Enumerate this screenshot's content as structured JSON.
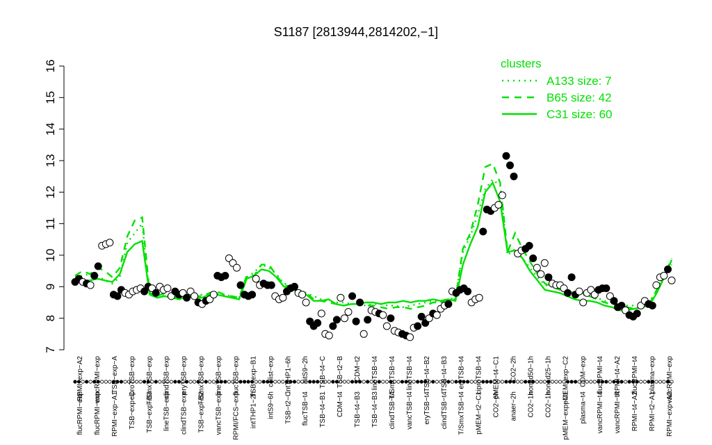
{
  "chart_data": {
    "type": "line",
    "title": "S1187 [2813944,2814202,−1]",
    "y_range": [
      7,
      16
    ],
    "y_ticks": [
      7,
      8,
      9,
      10,
      11,
      12,
      13,
      14,
      15,
      16
    ],
    "grid": false,
    "legend": {
      "title": "clusters",
      "placement": "top-right",
      "color": "#00e000",
      "items": [
        {
          "label": "A133 size: 7",
          "style": "dotted"
        },
        {
          "label": "B65 size: 42",
          "style": "dashed"
        },
        {
          "label": "C31 size: 60",
          "style": "solid"
        }
      ]
    },
    "x_labels_top": [
      "RPMI−exp−A2",
      "vancRPMI−exp",
      "TSB−exp−A",
      "ciproTSB−exp",
      "T/SmxTSB−exp",
      "clindTSB−exp",
      "eryTSB−exp",
      "T/SmxTSB−exp",
      "lineTSB−exp",
      "flucTSB−exp",
      "TSB−exp−B1",
      "colist−exp",
      "intTHP1−6h",
      "intS9−2h",
      "TSB−t4−C",
      "TSB−t2−B",
      "CDM−t2",
      "lineTSB−t4",
      "T/SmxTSB−t4",
      "lineTSB−t4",
      "TSB−t4−B2",
      "TSB−t4−B3",
      "eryTSB−t4",
      "ciproTSB−t4",
      "pMEM−t4−C1",
      "CO2−2h",
      "nonad50−1h",
      "nonad25−1h",
      "pMEM−exp−C2",
      "CDM−exp",
      "flucRPMI−t4",
      "RPMI−t4−A2",
      "flucRPMI−t4",
      "plasma−exp",
      "vancRPMI−exp"
    ],
    "x_labels_bottom": [
      "flucRPMI−exp",
      "flucRPMI−exp",
      "RPMI−exp−A1",
      "TSB−exp−C",
      "TSB−exp−B3",
      "lineTSB−exp",
      "clindTSB−exp",
      "TSB−exp−B2",
      "vancTSB−exp",
      "RPMI/FCS−exp",
      "intTHP1−2h",
      "intS9−6h",
      "TSB−t2−C",
      "flucTSB−t4",
      "TSB−t4−B1",
      "CDM−t4",
      "TSB−t4−B3",
      "TSB−t4−B3",
      "clindTSB−t4",
      "vancTSB−t4",
      "eryTSB−t4",
      "clindTSB−t4",
      "T/SmxTSB−t4",
      "pMEM−t2−C1",
      "CO2−6h",
      "anaer−2h",
      "CO2−1h",
      "CO2−1h",
      "pMEM−exp−C1",
      "plasma−t4",
      "vancRPMI−t4",
      "vancRPMI−t4",
      "RPMI−t4−A2",
      "RPMI−t2−A1",
      "RPMI−exp−A2"
    ],
    "points": [
      {
        "y": 9.15,
        "f": 1
      },
      {
        "y": 9.25,
        "f": 1
      },
      {
        "y": 9.15,
        "f": 0
      },
      {
        "y": 9.1,
        "f": 1
      },
      {
        "y": 9.05,
        "f": 0
      },
      {
        "y": 9.35,
        "f": 1
      },
      {
        "y": 9.65,
        "f": 1
      },
      {
        "y": 10.3,
        "f": 0
      },
      {
        "y": 10.35,
        "f": 0
      },
      {
        "y": 10.4,
        "f": 0
      },
      {
        "y": 8.75,
        "f": 1
      },
      {
        "y": 8.7,
        "f": 1
      },
      {
        "y": 8.9,
        "f": 1
      },
      {
        "y": 8.8,
        "f": 0
      },
      {
        "y": 8.75,
        "f": 0
      },
      {
        "y": 8.85,
        "f": 0
      },
      {
        "y": 8.9,
        "f": 0
      },
      {
        "y": 8.95,
        "f": 0
      },
      {
        "y": 8.85,
        "f": 1
      },
      {
        "y": 9.0,
        "f": 1
      },
      {
        "y": 8.95,
        "f": 0
      },
      {
        "y": 8.8,
        "f": 1
      },
      {
        "y": 9.0,
        "f": 0
      },
      {
        "y": 8.9,
        "f": 0
      },
      {
        "y": 8.95,
        "f": 0
      },
      {
        "y": 8.7,
        "f": 0
      },
      {
        "y": 8.85,
        "f": 1
      },
      {
        "y": 8.75,
        "f": 1
      },
      {
        "y": 8.8,
        "f": 0
      },
      {
        "y": 8.65,
        "f": 1
      },
      {
        "y": 8.85,
        "f": 0
      },
      {
        "y": 8.7,
        "f": 0
      },
      {
        "y": 8.5,
        "f": 1
      },
      {
        "y": 8.45,
        "f": 0
      },
      {
        "y": 8.55,
        "f": 1
      },
      {
        "y": 8.6,
        "f": 0
      },
      {
        "y": 8.75,
        "f": 0
      },
      {
        "y": 9.35,
        "f": 1
      },
      {
        "y": 9.3,
        "f": 1
      },
      {
        "y": 9.35,
        "f": 1
      },
      {
        "y": 9.9,
        "f": 0
      },
      {
        "y": 9.75,
        "f": 0
      },
      {
        "y": 9.6,
        "f": 0
      },
      {
        "y": 9.05,
        "f": 1
      },
      {
        "y": 8.75,
        "f": 1
      },
      {
        "y": 8.7,
        "f": 1
      },
      {
        "y": 8.75,
        "f": 1
      },
      {
        "y": 9.25,
        "f": 0
      },
      {
        "y": 9.05,
        "f": 0
      },
      {
        "y": 9.1,
        "f": 1
      },
      {
        "y": 9.05,
        "f": 1
      },
      {
        "y": 9.05,
        "f": 1
      },
      {
        "y": 8.7,
        "f": 0
      },
      {
        "y": 8.6,
        "f": 0
      },
      {
        "y": 8.65,
        "f": 0
      },
      {
        "y": 8.85,
        "f": 1
      },
      {
        "y": 8.95,
        "f": 1
      },
      {
        "y": 9.0,
        "f": 1
      },
      {
        "y": 8.8,
        "f": 0
      },
      {
        "y": 8.75,
        "f": 0
      },
      {
        "y": 8.5,
        "f": 0
      },
      {
        "y": 7.9,
        "f": 1
      },
      {
        "y": 7.75,
        "f": 1
      },
      {
        "y": 7.85,
        "f": 1
      },
      {
        "y": 8.15,
        "f": 0
      },
      {
        "y": 7.5,
        "f": 0
      },
      {
        "y": 7.45,
        "f": 0
      },
      {
        "y": 7.75,
        "f": 1
      },
      {
        "y": 7.95,
        "f": 1
      },
      {
        "y": 8.65,
        "f": 0
      },
      {
        "y": 8.0,
        "f": 0
      },
      {
        "y": 8.2,
        "f": 0
      },
      {
        "y": 8.7,
        "f": 1
      },
      {
        "y": 7.9,
        "f": 1
      },
      {
        "y": 8.5,
        "f": 1
      },
      {
        "y": 7.5,
        "f": 0
      },
      {
        "y": 7.95,
        "f": 1
      },
      {
        "y": 8.25,
        "f": 0
      },
      {
        "y": 8.2,
        "f": 0
      },
      {
        "y": 8.15,
        "f": 1
      },
      {
        "y": 8.1,
        "f": 0
      },
      {
        "y": 7.75,
        "f": 0
      },
      {
        "y": 8.0,
        "f": 1
      },
      {
        "y": 7.6,
        "f": 0
      },
      {
        "y": 7.55,
        "f": 0
      },
      {
        "y": 7.5,
        "f": 1
      },
      {
        "y": 7.45,
        "f": 1
      },
      {
        "y": 7.4,
        "f": 0
      },
      {
        "y": 7.7,
        "f": 0
      },
      {
        "y": 7.75,
        "f": 1
      },
      {
        "y": 8.05,
        "f": 1
      },
      {
        "y": 7.85,
        "f": 1
      },
      {
        "y": 8.0,
        "f": 0
      },
      {
        "y": 8.15,
        "f": 1
      },
      {
        "y": 8.1,
        "f": 0
      },
      {
        "y": 8.3,
        "f": 0
      },
      {
        "y": 8.4,
        "f": 0
      },
      {
        "y": 8.45,
        "f": 1
      },
      {
        "y": 8.85,
        "f": 0
      },
      {
        "y": 8.8,
        "f": 1
      },
      {
        "y": 8.9,
        "f": 1
      },
      {
        "y": 8.95,
        "f": 1
      },
      {
        "y": 8.85,
        "f": 1
      },
      {
        "y": 8.5,
        "f": 0
      },
      {
        "y": 8.6,
        "f": 0
      },
      {
        "y": 8.65,
        "f": 0
      },
      {
        "y": 10.75,
        "f": 1
      },
      {
        "y": 11.45,
        "f": 1
      },
      {
        "y": 11.4,
        "f": 1
      },
      {
        "y": 11.5,
        "f": 0
      },
      {
        "y": 11.6,
        "f": 0
      },
      {
        "y": 11.9,
        "f": 0
      },
      {
        "y": 13.15,
        "f": 1
      },
      {
        "y": 12.85,
        "f": 1
      },
      {
        "y": 12.5,
        "f": 1
      },
      {
        "y": 10.05,
        "f": 0
      },
      {
        "y": 10.15,
        "f": 0
      },
      {
        "y": 10.2,
        "f": 1
      },
      {
        "y": 10.3,
        "f": 1
      },
      {
        "y": 9.9,
        "f": 1
      },
      {
        "y": 9.6,
        "f": 0
      },
      {
        "y": 9.4,
        "f": 0
      },
      {
        "y": 9.75,
        "f": 0
      },
      {
        "y": 9.3,
        "f": 1
      },
      {
        "y": 9.1,
        "f": 0
      },
      {
        "y": 9.05,
        "f": 0
      },
      {
        "y": 9.05,
        "f": 0
      },
      {
        "y": 8.95,
        "f": 0
      },
      {
        "y": 8.8,
        "f": 1
      },
      {
        "y": 9.3,
        "f": 1
      },
      {
        "y": 8.75,
        "f": 1
      },
      {
        "y": 8.85,
        "f": 0
      },
      {
        "y": 8.5,
        "f": 0
      },
      {
        "y": 8.8,
        "f": 0
      },
      {
        "y": 8.9,
        "f": 0
      },
      {
        "y": 8.75,
        "f": 0
      },
      {
        "y": 8.9,
        "f": 1
      },
      {
        "y": 8.95,
        "f": 1
      },
      {
        "y": 8.95,
        "f": 1
      },
      {
        "y": 8.7,
        "f": 0
      },
      {
        "y": 8.55,
        "f": 1
      },
      {
        "y": 8.35,
        "f": 1
      },
      {
        "y": 8.4,
        "f": 1
      },
      {
        "y": 8.25,
        "f": 0
      },
      {
        "y": 8.1,
        "f": 1
      },
      {
        "y": 8.05,
        "f": 1
      },
      {
        "y": 8.15,
        "f": 1
      },
      {
        "y": 8.4,
        "f": 0
      },
      {
        "y": 8.55,
        "f": 0
      },
      {
        "y": 8.45,
        "f": 1
      },
      {
        "y": 8.4,
        "f": 1
      },
      {
        "y": 9.05,
        "f": 0
      },
      {
        "y": 9.3,
        "f": 0
      },
      {
        "y": 9.35,
        "f": 0
      },
      {
        "y": 9.55,
        "f": 1
      },
      {
        "y": 9.2,
        "f": 0
      }
    ],
    "series": [
      {
        "name": "A133 size: 7",
        "style": "dotted",
        "values": [
          9.3,
          9.35,
          9.4,
          9.35,
          9.2,
          9.1,
          9.3,
          10.4,
          10.7,
          11.0,
          8.7,
          8.75,
          8.75,
          8.7,
          8.7,
          8.75,
          8.7,
          8.75,
          8.75,
          8.8,
          8.75,
          8.7,
          8.65,
          9.3,
          9.45,
          9.7,
          9.6,
          9.4,
          9.1,
          9.05,
          8.9,
          8.8,
          8.7,
          8.6,
          8.55,
          8.5,
          8.5,
          8.45,
          8.45,
          8.4,
          8.45,
          8.45,
          8.4,
          8.4,
          8.35,
          8.4,
          8.45,
          8.5,
          8.55,
          8.5,
          8.6,
          8.65,
          10.1,
          10.6,
          11.3,
          12.1,
          12.4,
          12.2,
          10.0,
          10.2,
          9.9,
          9.6,
          9.3,
          9.05,
          9.0,
          8.95,
          8.9,
          8.8,
          8.75,
          8.7,
          8.65,
          8.55,
          8.5,
          8.45,
          8.4,
          8.4,
          8.45,
          8.5,
          8.9,
          9.4,
          9.7
        ]
      },
      {
        "name": "B65 size: 42",
        "style": "dashed",
        "values": [
          9.35,
          9.5,
          9.4,
          9.6,
          9.5,
          9.3,
          9.6,
          10.6,
          11.1,
          11.2,
          8.8,
          8.7,
          8.8,
          8.7,
          8.65,
          8.75,
          8.7,
          8.7,
          8.8,
          8.85,
          8.75,
          8.7,
          8.65,
          9.35,
          9.35,
          9.7,
          9.7,
          9.35,
          9.05,
          9.0,
          8.85,
          8.8,
          8.6,
          8.55,
          8.5,
          8.45,
          8.4,
          8.45,
          8.45,
          8.4,
          8.4,
          8.35,
          8.3,
          8.35,
          8.35,
          8.3,
          8.35,
          8.4,
          8.5,
          8.5,
          8.6,
          8.6,
          10.2,
          10.7,
          11.6,
          12.8,
          12.9,
          12.3,
          10.1,
          10.7,
          10.2,
          9.8,
          9.4,
          9.1,
          9.0,
          8.9,
          8.85,
          8.8,
          8.8,
          8.7,
          8.6,
          8.5,
          8.45,
          8.4,
          8.35,
          8.3,
          8.35,
          8.45,
          8.9,
          9.35,
          9.9
        ]
      },
      {
        "name": "C31 size: 60",
        "style": "solid",
        "values": [
          9.15,
          9.2,
          9.2,
          9.25,
          9.2,
          9.15,
          9.4,
          10.1,
          10.35,
          10.45,
          8.75,
          8.65,
          8.7,
          8.65,
          8.6,
          8.7,
          8.65,
          8.65,
          8.75,
          8.75,
          8.7,
          8.65,
          8.6,
          9.25,
          9.35,
          9.55,
          9.5,
          9.3,
          9.0,
          8.95,
          8.8,
          8.75,
          8.55,
          8.55,
          8.6,
          8.45,
          8.4,
          8.45,
          8.45,
          8.5,
          8.5,
          8.45,
          8.5,
          8.5,
          8.55,
          8.5,
          8.55,
          8.55,
          8.6,
          8.55,
          8.6,
          8.55,
          9.7,
          10.35,
          10.9,
          12.0,
          12.3,
          11.7,
          10.1,
          10.15,
          9.9,
          9.5,
          9.2,
          8.9,
          8.85,
          8.8,
          8.7,
          8.6,
          8.55,
          8.55,
          8.5,
          8.4,
          8.35,
          8.25,
          8.25,
          8.3,
          8.35,
          8.4,
          8.8,
          9.3,
          9.85
        ]
      }
    ]
  }
}
